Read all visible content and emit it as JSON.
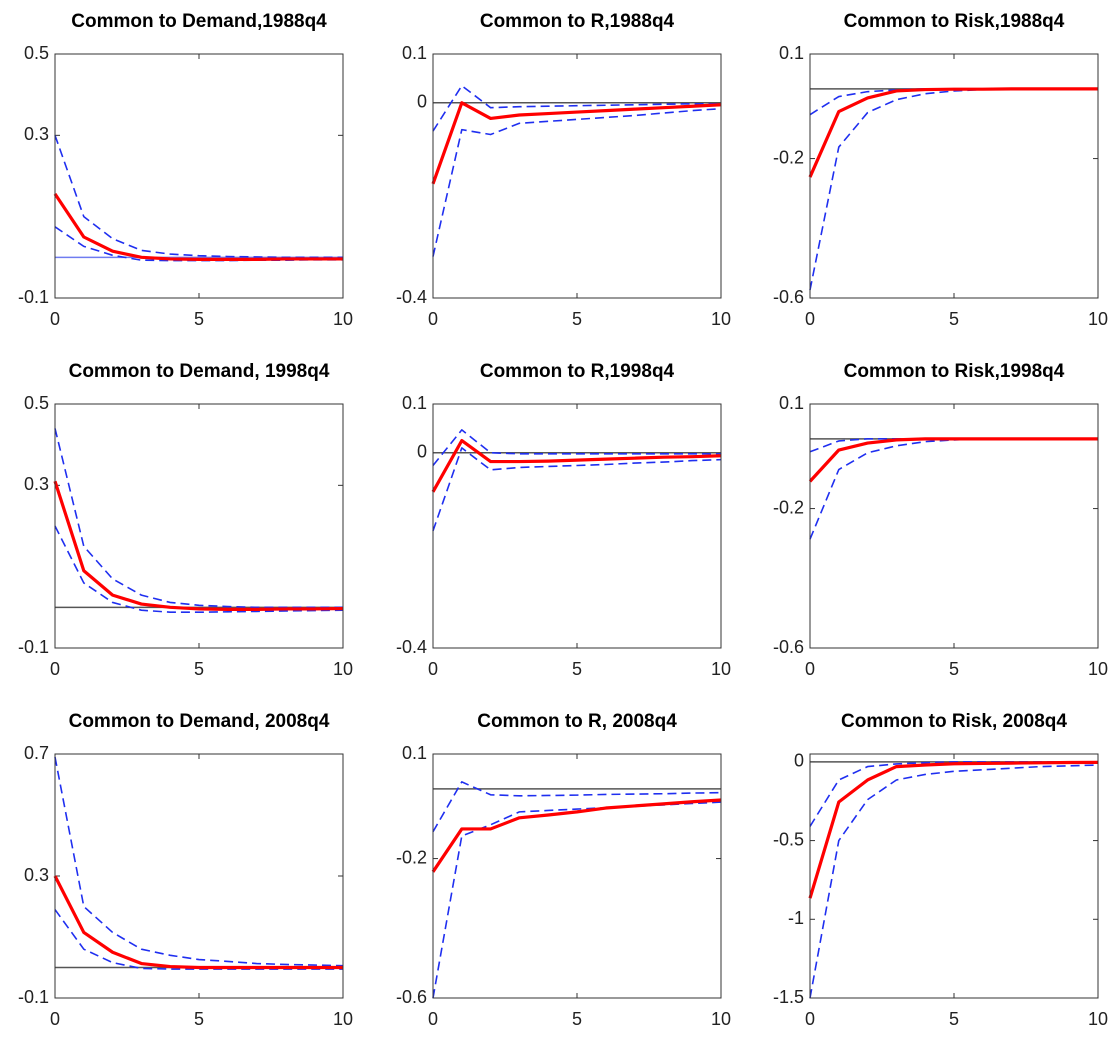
{
  "chart_data": [
    {
      "type": "line",
      "title": "Common to Demand,1988q4",
      "x": [
        0,
        1,
        2,
        3,
        4,
        5,
        6,
        7,
        8,
        9,
        10
      ],
      "xlim": [
        0,
        10
      ],
      "xticks": [
        0,
        5,
        10
      ],
      "ylim": [
        -0.1,
        0.5
      ],
      "yticks": [
        -0.1,
        0.3,
        0.5
      ],
      "reference_line": 0,
      "reference_color": "#6f7cf0",
      "series": [
        {
          "color": "#ff0000",
          "dashed": false,
          "values": [
            0.156,
            0.05,
            0.015,
            0.0,
            -0.004,
            -0.005,
            -0.005,
            -0.005,
            -0.004,
            -0.004,
            -0.004
          ]
        },
        {
          "color": "#1f2ff0",
          "dashed": true,
          "values": [
            0.3,
            0.1,
            0.046,
            0.017,
            0.008,
            0.004,
            0.002,
            0.001,
            0.0,
            0.0,
            0.0
          ]
        },
        {
          "color": "#1f2ff0",
          "dashed": true,
          "values": [
            0.075,
            0.027,
            0.005,
            -0.007,
            -0.008,
            -0.008,
            -0.008,
            -0.007,
            -0.007,
            -0.006,
            -0.006
          ]
        }
      ]
    },
    {
      "type": "line",
      "title": "Common to R,1988q4",
      "x": [
        0,
        1,
        2,
        3,
        4,
        5,
        6,
        7,
        8,
        9,
        10
      ],
      "xlim": [
        0,
        10
      ],
      "xticks": [
        0,
        5,
        10
      ],
      "ylim": [
        -0.4,
        0.1
      ],
      "yticks": [
        -0.4,
        0,
        0.1
      ],
      "reference_line": 0,
      "reference_color": "#555555",
      "series": [
        {
          "color": "#ff0000",
          "dashed": false,
          "values": [
            -0.166,
            0.0,
            -0.032,
            -0.025,
            -0.022,
            -0.019,
            -0.016,
            -0.013,
            -0.01,
            -0.007,
            -0.004
          ]
        },
        {
          "color": "#1f2ff0",
          "dashed": true,
          "values": [
            -0.058,
            0.035,
            -0.01,
            -0.008,
            -0.007,
            -0.006,
            -0.005,
            -0.004,
            -0.003,
            -0.002,
            -0.002
          ]
        },
        {
          "color": "#1f2ff0",
          "dashed": true,
          "values": [
            -0.315,
            -0.055,
            -0.065,
            -0.042,
            -0.038,
            -0.034,
            -0.03,
            -0.026,
            -0.021,
            -0.016,
            -0.012
          ]
        }
      ]
    },
    {
      "type": "line",
      "title": "Common to Risk,1988q4",
      "x": [
        0,
        1,
        2,
        3,
        4,
        5,
        6,
        7,
        8,
        9,
        10
      ],
      "xlim": [
        0,
        10
      ],
      "xticks": [
        0,
        5,
        10
      ],
      "ylim": [
        -0.6,
        0.1
      ],
      "yticks": [
        -0.6,
        -0.2,
        0.1
      ],
      "reference_line": 0,
      "reference_color": "#555555",
      "series": [
        {
          "color": "#ff0000",
          "dashed": false,
          "values": [
            -0.253,
            -0.065,
            -0.026,
            -0.006,
            -0.002,
            -0.001,
            -0.001,
            0.0,
            0.0,
            0.0,
            0.0
          ]
        },
        {
          "color": "#1f2ff0",
          "dashed": true,
          "values": [
            -0.074,
            -0.022,
            -0.008,
            -0.003,
            0.0,
            0.0,
            0.0,
            0.0,
            0.0,
            0.0,
            0.0
          ]
        },
        {
          "color": "#1f2ff0",
          "dashed": true,
          "values": [
            -0.577,
            -0.167,
            -0.068,
            -0.031,
            -0.014,
            -0.006,
            -0.002,
            -0.002,
            -0.002,
            -0.002,
            -0.002
          ]
        }
      ]
    },
    {
      "type": "line",
      "title": "Common to Demand, 1998q4",
      "x": [
        0,
        1,
        2,
        3,
        4,
        5,
        6,
        7,
        8,
        9,
        10
      ],
      "xlim": [
        0,
        10
      ],
      "xticks": [
        0,
        5,
        10
      ],
      "ylim": [
        -0.1,
        0.5
      ],
      "yticks": [
        -0.1,
        0.3,
        0.5
      ],
      "reference_line": 0,
      "reference_color": "#555555",
      "series": [
        {
          "color": "#ff0000",
          "dashed": false,
          "values": [
            0.31,
            0.09,
            0.03,
            0.008,
            0.0,
            -0.004,
            -0.005,
            -0.005,
            -0.004,
            -0.004,
            -0.003
          ]
        },
        {
          "color": "#1f2ff0",
          "dashed": true,
          "values": [
            0.44,
            0.15,
            0.07,
            0.03,
            0.012,
            0.005,
            0.002,
            0.0,
            0.0,
            0.0,
            0.0
          ]
        },
        {
          "color": "#1f2ff0",
          "dashed": true,
          "values": [
            0.2,
            0.06,
            0.012,
            -0.007,
            -0.012,
            -0.012,
            -0.011,
            -0.01,
            -0.009,
            -0.008,
            -0.007
          ]
        }
      ]
    },
    {
      "type": "line",
      "title": "Common to R,1998q4",
      "x": [
        0,
        1,
        2,
        3,
        4,
        5,
        6,
        7,
        8,
        9,
        10
      ],
      "xlim": [
        0,
        10
      ],
      "xticks": [
        0,
        5,
        10
      ],
      "ylim": [
        -0.4,
        0.1
      ],
      "yticks": [
        -0.4,
        0,
        0.1
      ],
      "reference_line": 0,
      "reference_color": "#555555",
      "series": [
        {
          "color": "#ff0000",
          "dashed": false,
          "values": [
            -0.08,
            0.025,
            -0.018,
            -0.018,
            -0.017,
            -0.015,
            -0.013,
            -0.011,
            -0.009,
            -0.008,
            -0.006
          ]
        },
        {
          "color": "#1f2ff0",
          "dashed": true,
          "values": [
            -0.026,
            0.047,
            0.0,
            -0.002,
            -0.002,
            -0.002,
            -0.002,
            -0.002,
            -0.002,
            -0.002,
            -0.002
          ]
        },
        {
          "color": "#1f2ff0",
          "dashed": true,
          "values": [
            -0.16,
            0.01,
            -0.035,
            -0.03,
            -0.028,
            -0.026,
            -0.024,
            -0.021,
            -0.019,
            -0.016,
            -0.014
          ]
        }
      ]
    },
    {
      "type": "line",
      "title": "Common to Risk,1998q4",
      "x": [
        0,
        1,
        2,
        3,
        4,
        5,
        6,
        7,
        8,
        9,
        10
      ],
      "xlim": [
        0,
        10
      ],
      "xticks": [
        0,
        5,
        10
      ],
      "ylim": [
        -0.6,
        0.1
      ],
      "yticks": [
        -0.6,
        -0.2,
        0.1
      ],
      "reference_line": 0,
      "reference_color": "#555555",
      "series": [
        {
          "color": "#ff0000",
          "dashed": false,
          "values": [
            -0.122,
            -0.032,
            -0.012,
            -0.003,
            0.0,
            0.0,
            0.0,
            0.0,
            0.0,
            0.0,
            0.0
          ]
        },
        {
          "color": "#1f2ff0",
          "dashed": true,
          "values": [
            -0.037,
            -0.006,
            0.0,
            0.0,
            0.0,
            0.0,
            0.0,
            0.0,
            0.0,
            0.0,
            0.0
          ]
        },
        {
          "color": "#1f2ff0",
          "dashed": true,
          "values": [
            -0.288,
            -0.088,
            -0.04,
            -0.02,
            -0.008,
            -0.003,
            0.0,
            0.0,
            0.0,
            0.0,
            0.0
          ]
        }
      ]
    },
    {
      "type": "line",
      "title": "Common to Demand, 2008q4",
      "x": [
        0,
        1,
        2,
        3,
        4,
        5,
        6,
        7,
        8,
        9,
        10
      ],
      "xlim": [
        0,
        10
      ],
      "xticks": [
        0,
        5,
        10
      ],
      "ylim": [
        -0.1,
        0.7
      ],
      "yticks": [
        -0.1,
        0.3,
        0.7
      ],
      "reference_line": 0,
      "reference_color": "#555555",
      "series": [
        {
          "color": "#ff0000",
          "dashed": false,
          "values": [
            0.3,
            0.115,
            0.05,
            0.013,
            0.003,
            0.0,
            0.0,
            0.0,
            0.0,
            0.0,
            0.0
          ]
        },
        {
          "color": "#1f2ff0",
          "dashed": true,
          "values": [
            0.69,
            0.2,
            0.115,
            0.06,
            0.04,
            0.026,
            0.02,
            0.013,
            0.01,
            0.008,
            0.006
          ]
        },
        {
          "color": "#1f2ff0",
          "dashed": true,
          "values": [
            0.19,
            0.06,
            0.016,
            -0.003,
            -0.005,
            -0.005,
            -0.005,
            -0.005,
            -0.005,
            -0.005,
            -0.005
          ]
        }
      ]
    },
    {
      "type": "line",
      "title": "Common to R, 2008q4",
      "x": [
        0,
        1,
        2,
        3,
        4,
        5,
        6,
        7,
        8,
        9,
        10
      ],
      "xlim": [
        0,
        10
      ],
      "xticks": [
        0,
        5,
        10
      ],
      "ylim": [
        -0.6,
        0.1
      ],
      "yticks": [
        -0.6,
        -0.2,
        0.1
      ],
      "reference_line": 0,
      "reference_color": "#555555",
      "series": [
        {
          "color": "#ff0000",
          "dashed": false,
          "values": [
            -0.238,
            -0.115,
            -0.115,
            -0.083,
            -0.075,
            -0.066,
            -0.055,
            -0.049,
            -0.043,
            -0.037,
            -0.032
          ]
        },
        {
          "color": "#1f2ff0",
          "dashed": true,
          "values": [
            -0.123,
            0.02,
            -0.017,
            -0.02,
            -0.019,
            -0.018,
            -0.016,
            -0.015,
            -0.014,
            -0.012,
            -0.011
          ]
        },
        {
          "color": "#1f2ff0",
          "dashed": true,
          "values": [
            -0.6,
            -0.135,
            -0.103,
            -0.066,
            -0.062,
            -0.058,
            -0.054,
            -0.05,
            -0.046,
            -0.042,
            -0.038
          ]
        }
      ]
    },
    {
      "type": "line",
      "title": "Common to Risk, 2008q4",
      "x": [
        0,
        1,
        2,
        3,
        4,
        5,
        6,
        7,
        8,
        9,
        10
      ],
      "xlim": [
        0,
        10
      ],
      "xticks": [
        0,
        5,
        10
      ],
      "ylim": [
        -1.5,
        0.05
      ],
      "yticks": [
        -1.5,
        -1,
        -0.5,
        0
      ],
      "reference_line": 0,
      "reference_color": "#555555",
      "series": [
        {
          "color": "#ff0000",
          "dashed": false,
          "values": [
            -0.866,
            -0.255,
            -0.115,
            -0.03,
            -0.02,
            -0.012,
            -0.01,
            -0.008,
            -0.006,
            -0.004,
            -0.003
          ]
        },
        {
          "color": "#1f2ff0",
          "dashed": true,
          "values": [
            -0.41,
            -0.115,
            -0.03,
            -0.013,
            -0.005,
            0.0,
            0.0,
            0.0,
            0.0,
            0.0,
            0.0
          ]
        },
        {
          "color": "#1f2ff0",
          "dashed": true,
          "values": [
            -1.5,
            -0.5,
            -0.24,
            -0.115,
            -0.08,
            -0.06,
            -0.05,
            -0.04,
            -0.03,
            -0.025,
            -0.02
          ]
        }
      ]
    }
  ]
}
